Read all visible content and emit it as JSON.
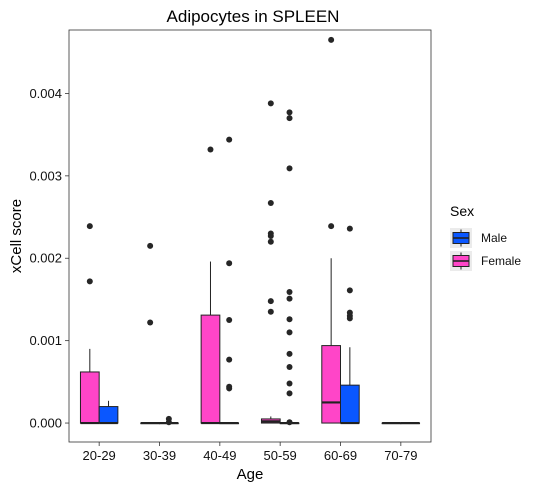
{
  "chart_data": {
    "type": "boxplot",
    "title": "Adipocytes in SPLEEN",
    "xlabel": "Age",
    "ylabel": "xCell score",
    "categories": [
      "20-29",
      "30-39",
      "40-49",
      "50-59",
      "60-69",
      "70-79"
    ],
    "y_ticks": [
      0.0,
      0.001,
      0.002,
      0.003,
      0.004
    ],
    "y_tick_labels": [
      "0.000",
      "0.001",
      "0.002",
      "0.003",
      "0.004"
    ],
    "ylim": [
      -0.00023,
      0.00477
    ],
    "grid": false,
    "legend": {
      "title": "Sex",
      "placement": "right",
      "entries": [
        {
          "key": "Male",
          "label": "Male",
          "color": "#0a57ff"
        },
        {
          "key": "Female",
          "label": "Female",
          "color": "#ff45c8"
        }
      ]
    },
    "groups": [
      {
        "category": "20-29",
        "sex": "Female",
        "q1": 0.0,
        "median": 0.0,
        "q3": 0.00062,
        "whisker_low": 0.0,
        "whisker_high": 0.0009,
        "outliers": [
          0.00172,
          0.00239
        ]
      },
      {
        "category": "20-29",
        "sex": "Male",
        "q1": 0.0,
        "median": 0.0,
        "q3": 0.0002,
        "whisker_low": 0.0,
        "whisker_high": 0.00027,
        "outliers": []
      },
      {
        "category": "30-39",
        "sex": "Female",
        "q1": 0.0,
        "median": 0.0,
        "q3": 0.0,
        "whisker_low": 0.0,
        "whisker_high": 0.0,
        "outliers": [
          0.00122,
          0.00215
        ]
      },
      {
        "category": "30-39",
        "sex": "Male",
        "q1": 0.0,
        "median": 0.0,
        "q3": 0.0,
        "whisker_low": 0.0,
        "whisker_high": 0.0,
        "outliers": [
          5e-05,
          1e-05
        ]
      },
      {
        "category": "40-49",
        "sex": "Female",
        "q1": 0.0,
        "median": 0.0,
        "q3": 0.00131,
        "whisker_low": 0.0,
        "whisker_high": 0.00196,
        "outliers": [
          0.00332
        ]
      },
      {
        "category": "40-49",
        "sex": "Male",
        "q1": 0.0,
        "median": 0.0,
        "q3": 0.0,
        "whisker_low": 0.0,
        "whisker_high": 0.0,
        "outliers": [
          0.00344,
          0.00194,
          0.00125,
          0.00077,
          0.00044,
          0.00042
        ]
      },
      {
        "category": "50-59",
        "sex": "Female",
        "q1": 0.0,
        "median": 2e-05,
        "q3": 5e-05,
        "whisker_low": 0.0,
        "whisker_high": 8e-05,
        "outliers": [
          0.00388,
          0.00267,
          0.0023,
          0.00227,
          0.0022,
          0.00148,
          0.00135
        ]
      },
      {
        "category": "50-59",
        "sex": "Male",
        "q1": 0.0,
        "median": 0.0,
        "q3": 0.0,
        "whisker_low": 0.0,
        "whisker_high": 0.0,
        "outliers": [
          0.00377,
          0.0037,
          0.00309,
          0.00159,
          0.00151,
          0.00126,
          0.0011,
          0.00084,
          0.00068,
          0.00048,
          0.00036,
          1e-05
        ]
      },
      {
        "category": "60-69",
        "sex": "Female",
        "q1": 0.0,
        "median": 0.00025,
        "q3": 0.00094,
        "whisker_low": 0.0,
        "whisker_high": 0.002,
        "outliers": [
          0.00465,
          0.00239
        ]
      },
      {
        "category": "60-69",
        "sex": "Male",
        "q1": 0.0,
        "median": 0.0,
        "q3": 0.00046,
        "whisker_low": 0.0,
        "whisker_high": 0.00092,
        "outliers": [
          0.00236,
          0.00161,
          0.00134,
          0.0013,
          0.00127
        ]
      },
      {
        "category": "70-79",
        "sex": "Female",
        "q1": 0.0,
        "median": 0.0,
        "q3": 0.0,
        "whisker_low": 0.0,
        "whisker_high": 0.0,
        "outliers": []
      },
      {
        "category": "70-79",
        "sex": "Male",
        "q1": 0.0,
        "median": 0.0,
        "q3": 0.0,
        "whisker_low": 0.0,
        "whisker_high": 0.0,
        "outliers": []
      }
    ]
  }
}
